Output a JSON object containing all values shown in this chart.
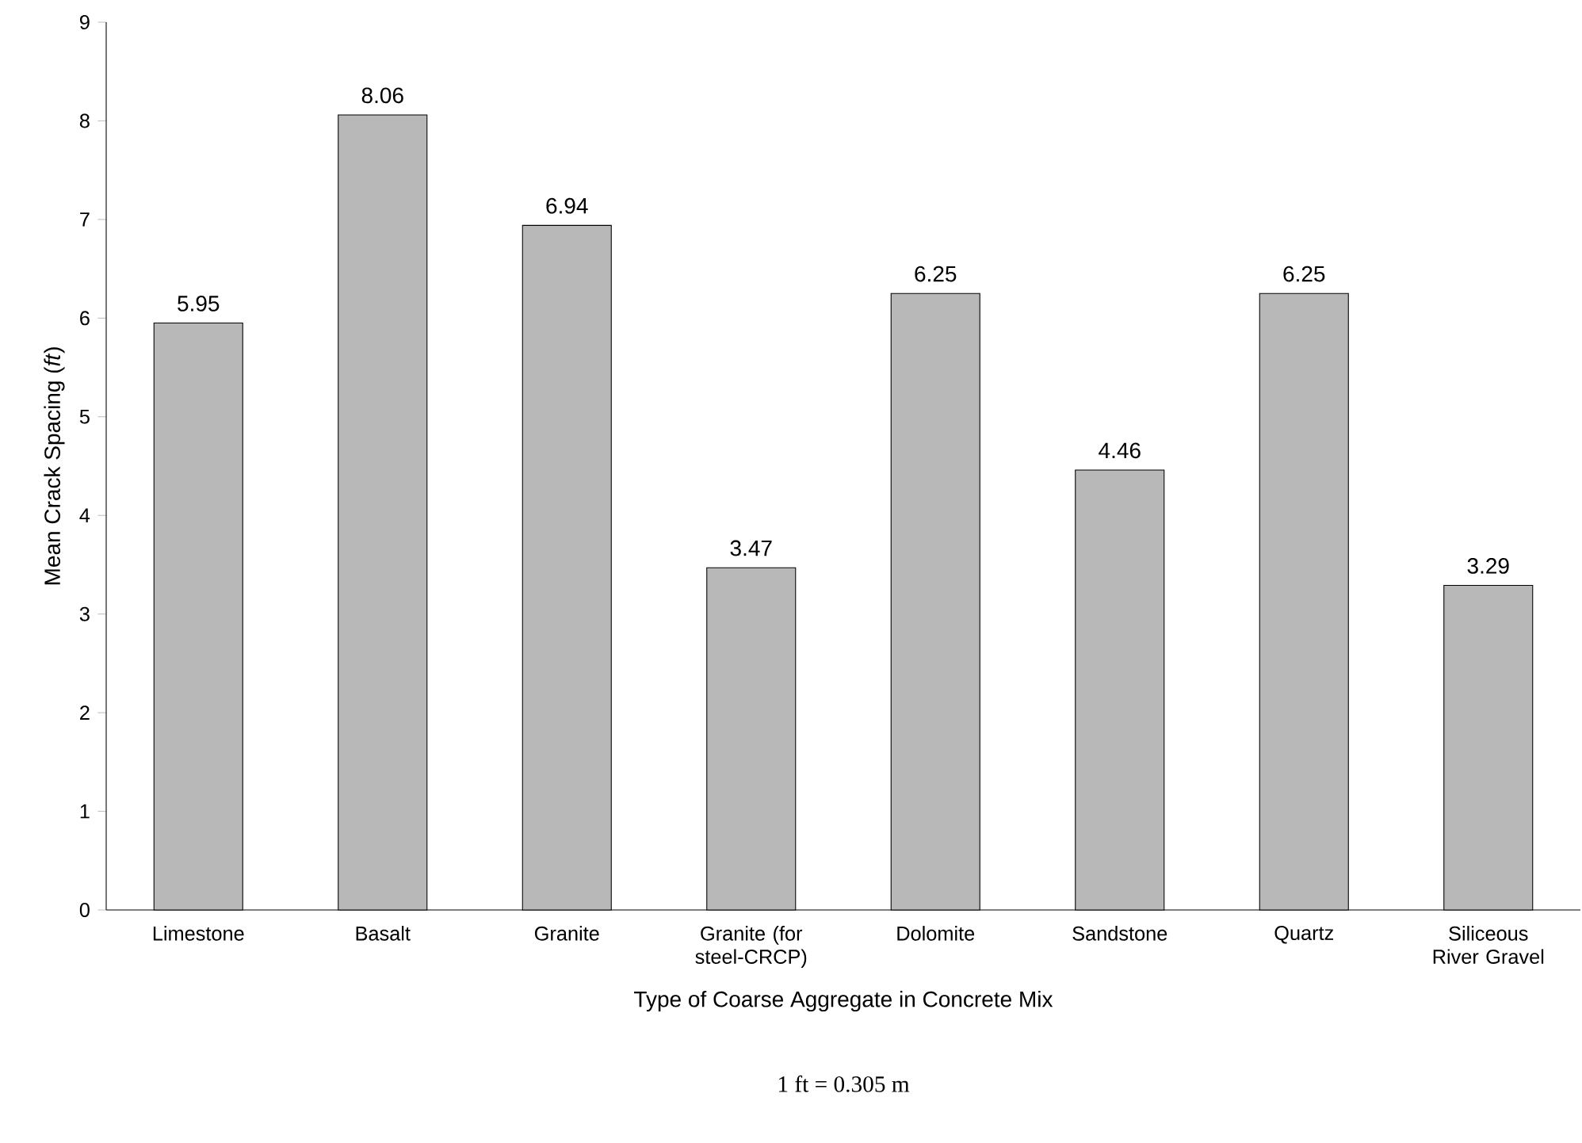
{
  "chart_data": {
    "type": "bar",
    "xlabel": "Type of Coarse Aggregate in Concrete Mix",
    "ylabel": "Mean Crack Spacing (*ft*)",
    "categories": [
      "Limestone",
      "Basalt",
      "Granite",
      "Granite (for steel-CRCP)",
      "Dolomite",
      "Sandstone",
      "Quartz",
      "Siliceous River Gravel"
    ],
    "values": [
      5.95,
      8.06,
      6.94,
      3.47,
      6.25,
      4.46,
      6.25,
      3.29
    ],
    "color": "#b8b8b8",
    "ylim": [
      0,
      9
    ],
    "yticks": [
      0,
      1,
      2,
      3,
      4,
      5,
      6,
      7,
      8,
      9
    ],
    "data_labels": true,
    "annotations": [
      "1 ft = 0.305 m"
    ]
  }
}
